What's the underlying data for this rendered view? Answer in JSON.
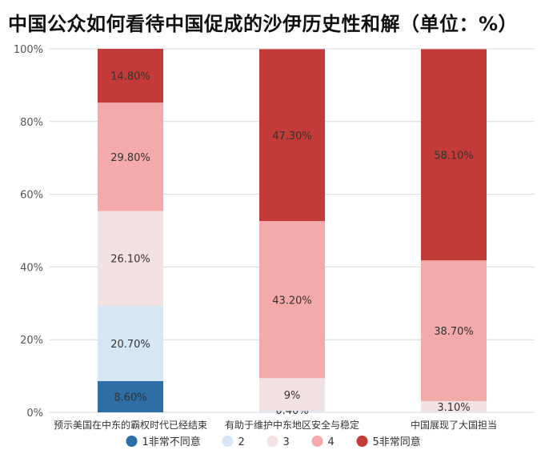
{
  "chart_data": {
    "type": "bar",
    "stacked": true,
    "title": "中国公众如何看待中国促成的沙伊历史性和解（单位：%）",
    "categories": [
      "预示美国在中东的霸权时代已经结束",
      "有助于维护中东地区安全与稳定",
      "中国展现了大国担当"
    ],
    "series": [
      {
        "name": "1非常不同意",
        "color": "#2e6ea6",
        "values": [
          8.6,
          0,
          0
        ],
        "labels": [
          "8.60%",
          "",
          ""
        ]
      },
      {
        "name": "2",
        "color": "#d6e6f5",
        "values": [
          20.7,
          0.4,
          0
        ],
        "labels": [
          "20.70%",
          "0.40%",
          ""
        ]
      },
      {
        "name": "3",
        "color": "#f2e2e4",
        "values": [
          26.1,
          9,
          3.1
        ],
        "labels": [
          "26.10%",
          "9%",
          "3.10%"
        ]
      },
      {
        "name": "4",
        "color": "#f4a9aa",
        "values": [
          29.8,
          43.2,
          38.7
        ],
        "labels": [
          "29.80%",
          "43.20%",
          "38.70%"
        ]
      },
      {
        "name": "5非常同意",
        "color": "#c33b38",
        "values": [
          14.8,
          47.3,
          58.1
        ],
        "labels": [
          "14.80%",
          "47.30%",
          "58.10%"
        ]
      }
    ],
    "yticks": [
      "0%",
      "20%",
      "40%",
      "60%",
      "80%",
      "100%"
    ],
    "ylim": [
      0,
      100
    ],
    "grid": true,
    "legend_position": "bottom"
  }
}
